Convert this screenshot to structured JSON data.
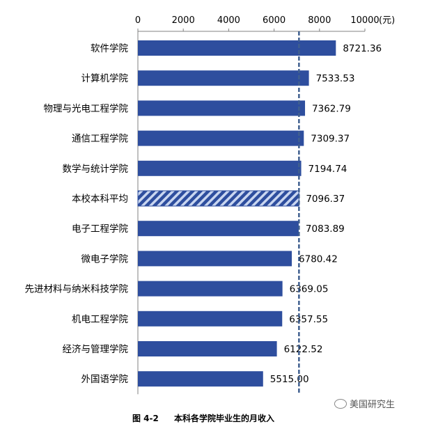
{
  "caption": {
    "figure_number": "图 4-2",
    "title": "本科各学院毕业生的月收入"
  },
  "watermark": {
    "icon": "wechat-icon",
    "text": "美国研究生"
  },
  "colors": {
    "bar": "#2e4e9e",
    "average_bar": "#2e4e9e",
    "average_hatch": "#c9d6f0",
    "reference_line": "#3f5f8f",
    "grid": "#bfbfbf"
  },
  "chart_data": {
    "type": "bar",
    "orientation": "horizontal",
    "title": "",
    "xlabel": "",
    "ylabel": "",
    "x_unit": "(元)",
    "xlim": [
      0,
      10000
    ],
    "xticks": [
      0,
      2000,
      4000,
      6000,
      8000,
      10000
    ],
    "x_axis_position": "top",
    "grid": false,
    "legend": "none",
    "categories": [
      "软件学院",
      "计算机学院",
      "物理与光电工程学院",
      "通信工程学院",
      "数学与统计学院",
      "本校本科平均",
      "电子工程学院",
      "微电子学院",
      "先进材料与纳米科技学院",
      "机电工程学院",
      "经济与管理学院",
      "外国语学院"
    ],
    "values": [
      8721.36,
      7533.53,
      7362.79,
      7309.37,
      7194.74,
      7096.37,
      7083.89,
      6780.42,
      6369.05,
      6357.55,
      6122.52,
      5515.0
    ],
    "value_labels": [
      "8721.36",
      "7533.53",
      "7362.79",
      "7309.37",
      "7194.74",
      "7096.37",
      "7083.89",
      "6780.42",
      "6369.05",
      "6357.55",
      "6122.52",
      "5515.00"
    ],
    "highlight_category": "本校本科平均",
    "reference_line_value": 7096.37
  }
}
